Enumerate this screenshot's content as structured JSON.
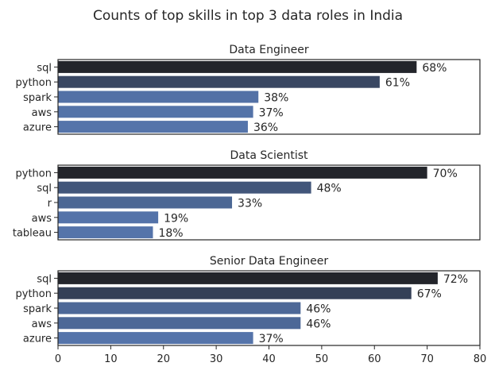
{
  "title": "Counts of top skills in top 3 data roles in India",
  "chart_data": [
    {
      "type": "bar",
      "orientation": "horizontal",
      "title": "Data Engineer",
      "categories": [
        "sql",
        "python",
        "spark",
        "aws",
        "azure"
      ],
      "values": [
        68,
        61,
        38,
        37,
        36
      ],
      "data_labels": [
        "68%",
        "61%",
        "38%",
        "37%",
        "36%"
      ],
      "xlim": [
        0,
        80
      ],
      "grid": false
    },
    {
      "type": "bar",
      "orientation": "horizontal",
      "title": "Data Scientist",
      "categories": [
        "python",
        "sql",
        "r",
        "aws",
        "tableau"
      ],
      "values": [
        70,
        48,
        33,
        19,
        18
      ],
      "data_labels": [
        "70%",
        "48%",
        "33%",
        "19%",
        "18%"
      ],
      "xlim": [
        0,
        80
      ],
      "grid": false
    },
    {
      "type": "bar",
      "orientation": "horizontal",
      "title": "Senior Data Engineer",
      "categories": [
        "sql",
        "python",
        "spark",
        "aws",
        "azure"
      ],
      "values": [
        72,
        67,
        46,
        46,
        37
      ],
      "data_labels": [
        "72%",
        "67%",
        "46%",
        "46%",
        "37%"
      ],
      "xlim": [
        0,
        80
      ],
      "xticks": [
        "0",
        "10",
        "20",
        "30",
        "40",
        "50",
        "60",
        "70",
        "80"
      ],
      "grid": false
    }
  ],
  "colors": {
    "bar_darkest": "#23252b",
    "bar_lightest": "#5574aa",
    "axis": "#262626"
  }
}
